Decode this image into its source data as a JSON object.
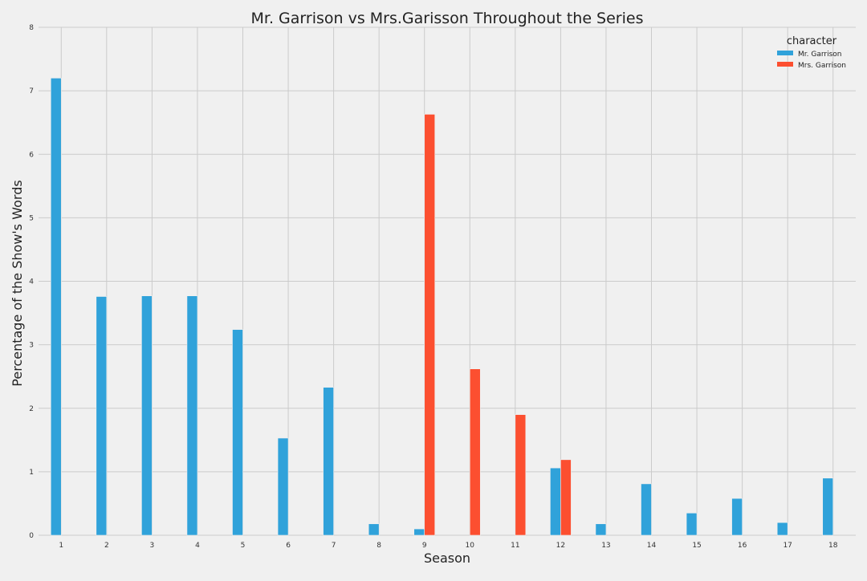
{
  "chart_data": {
    "type": "bar",
    "title": "Mr. Garrison vs Mrs.Garisson Throughout the Series",
    "xlabel": "Season",
    "ylabel": "Percentage of the Show's Words",
    "categories": [
      "1",
      "2",
      "3",
      "4",
      "5",
      "6",
      "7",
      "8",
      "9",
      "10",
      "11",
      "12",
      "13",
      "14",
      "15",
      "16",
      "17",
      "18"
    ],
    "yticks": [
      "0",
      "1",
      "2",
      "3",
      "4",
      "5",
      "6",
      "7",
      "8"
    ],
    "ylim": [
      0,
      8
    ],
    "grid": true,
    "legend": {
      "title": "character",
      "position": "top-right"
    },
    "series": [
      {
        "name": "Mr. Garrison",
        "color": "#30a2da",
        "values": [
          7.2,
          3.76,
          3.77,
          3.77,
          3.24,
          1.53,
          2.33,
          0.18,
          0.1,
          0,
          0,
          1.06,
          0.18,
          0.81,
          0.35,
          0.58,
          0.2,
          0.9
        ]
      },
      {
        "name": "Mrs. Garrison",
        "color": "#fc4f30",
        "values": [
          0,
          0,
          0,
          0,
          0,
          0,
          0,
          0,
          6.63,
          2.62,
          1.9,
          1.19,
          0,
          0,
          0,
          0,
          0,
          0
        ]
      }
    ]
  }
}
